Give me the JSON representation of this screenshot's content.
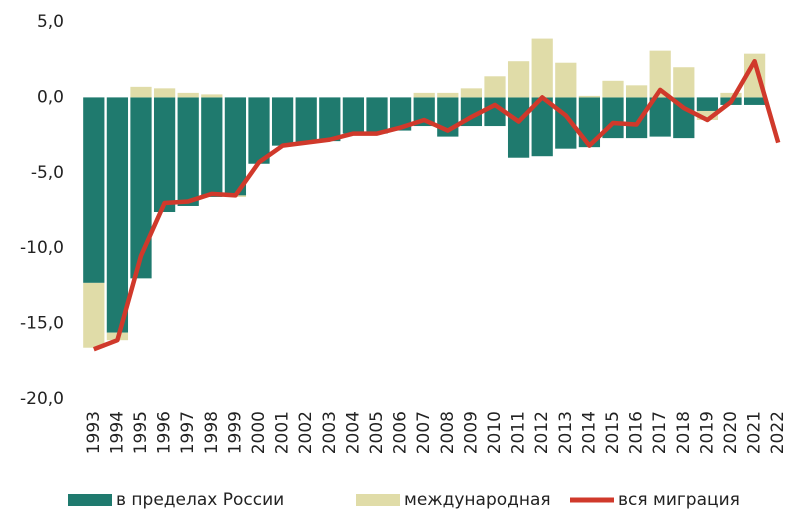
{
  "chart_data": {
    "type": "bar",
    "categories": [
      "1993",
      "1994",
      "1995",
      "1996",
      "1997",
      "1998",
      "1999",
      "2000",
      "2001",
      "2002",
      "2003",
      "2004",
      "2005",
      "2006",
      "2007",
      "2008",
      "2009",
      "2010",
      "2011",
      "2012",
      "2013",
      "2014",
      "2015",
      "2016",
      "2017",
      "2018",
      "2019",
      "2020",
      "2021",
      "2022"
    ],
    "series": [
      {
        "name": "в пределах России",
        "type": "bar",
        "color": "#1f7a6e",
        "values": [
          -12.3,
          -15.6,
          -12.0,
          -7.6,
          -7.2,
          -6.6,
          -6.5,
          -4.4,
          -3.2,
          -3.0,
          -2.9,
          -2.4,
          -2.4,
          -2.2,
          -1.9,
          -2.6,
          -1.9,
          -1.9,
          -4.0,
          -3.9,
          -3.4,
          -3.3,
          -2.7,
          -2.7,
          -2.6,
          -2.7,
          -0.9,
          -0.5,
          -0.5,
          null
        ]
      },
      {
        "name": "международная",
        "type": "bar",
        "color": "#e0dca8",
        "values": [
          -4.3,
          -0.5,
          0.7,
          0.6,
          0.3,
          0.2,
          -0.1,
          0.0,
          0.0,
          0.0,
          0.0,
          0.0,
          0.0,
          0.0,
          0.3,
          0.3,
          0.6,
          1.4,
          2.4,
          3.9,
          2.3,
          0.1,
          1.1,
          0.8,
          3.1,
          2.0,
          -0.6,
          0.3,
          2.9,
          null
        ]
      },
      {
        "name": "вся миграция",
        "type": "line",
        "color": "#d0392b",
        "values": [
          -16.7,
          -16.1,
          -10.5,
          -7.0,
          -6.9,
          -6.4,
          -6.5,
          -4.3,
          -3.2,
          -3.0,
          -2.8,
          -2.4,
          -2.4,
          -2.0,
          -1.5,
          -2.2,
          -1.3,
          -0.5,
          -1.6,
          0.0,
          -1.2,
          -3.2,
          -1.7,
          -1.8,
          0.5,
          -0.7,
          -1.5,
          -0.3,
          2.4,
          -3.0
        ]
      }
    ],
    "ylim": [
      -20,
      5
    ],
    "yticks": [
      {
        "value": 5,
        "label": "5,0"
      },
      {
        "value": 0,
        "label": "0,0"
      },
      {
        "value": -5,
        "label": "-5,0"
      },
      {
        "value": -10,
        "label": "-10,0"
      },
      {
        "value": -15,
        "label": "-15,0"
      },
      {
        "value": -20,
        "label": "-20,0"
      }
    ],
    "grid": false
  }
}
